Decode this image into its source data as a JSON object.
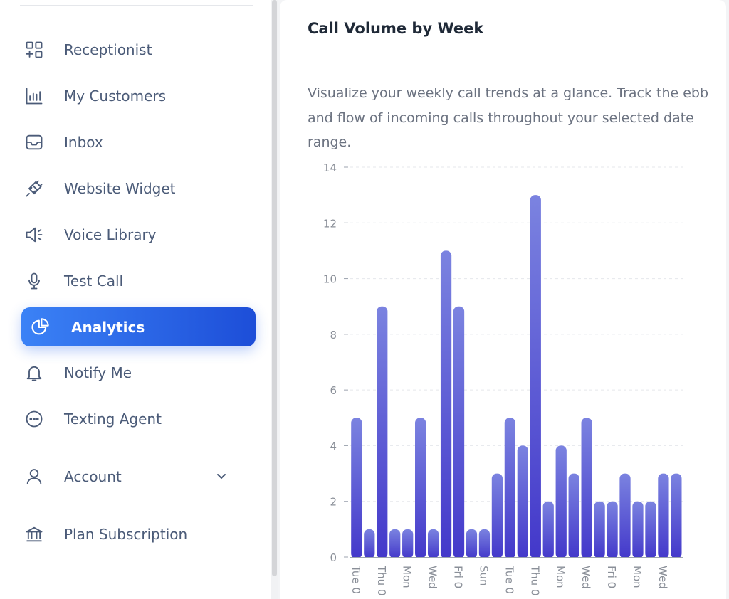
{
  "sidebar": {
    "items": [
      {
        "label": "Receptionist",
        "icon": "grid-plus-icon"
      },
      {
        "label": "My Customers",
        "icon": "bar-chart-icon"
      },
      {
        "label": "Inbox",
        "icon": "inbox-icon"
      },
      {
        "label": "Website Widget",
        "icon": "plug-icon"
      },
      {
        "label": "Voice Library",
        "icon": "speaker-icon"
      },
      {
        "label": "Test Call",
        "icon": "microphone-icon"
      },
      {
        "label": "Analytics",
        "icon": "pie-chart-icon",
        "active": true
      },
      {
        "label": "Notify Me",
        "icon": "bell-icon"
      },
      {
        "label": "Texting Agent",
        "icon": "chat-bubble-icon"
      },
      {
        "label": "Account",
        "icon": "user-icon",
        "has_chevron": true
      },
      {
        "label": "Plan Subscription",
        "icon": "bank-icon"
      }
    ],
    "active_color": "#2563eb",
    "text_color": "#4b5b78"
  },
  "card": {
    "title": "Call Volume by Week",
    "description": "Visualize your weekly call trends at a glance. Track the ebb and flow of incoming calls throughout your selected date range."
  },
  "chart_data": {
    "type": "bar",
    "ylim": [
      0,
      14
    ],
    "yticks": [
      0,
      2,
      4,
      6,
      8,
      10,
      12,
      14
    ],
    "grid": true,
    "bar_color_top": "#7b83e0",
    "bar_color_bottom": "#4338ca",
    "categories": [
      "Tue 0",
      "",
      "Thu 0",
      "",
      "Mon",
      "",
      "Wed",
      "",
      "Fri 0",
      "",
      "Sun",
      "",
      "Tue 0",
      "",
      "Thu 0",
      "",
      "Mon",
      "",
      "Wed",
      "",
      "Fri 0",
      "",
      "Mon",
      "",
      "Wed",
      ""
    ],
    "values": [
      5,
      1,
      9,
      1,
      1,
      5,
      1,
      11,
      9,
      1,
      1,
      3,
      5,
      4,
      13,
      2,
      4,
      3,
      5,
      2,
      2,
      3,
      2,
      2,
      3,
      3
    ],
    "xlabel": "",
    "ylabel": ""
  }
}
